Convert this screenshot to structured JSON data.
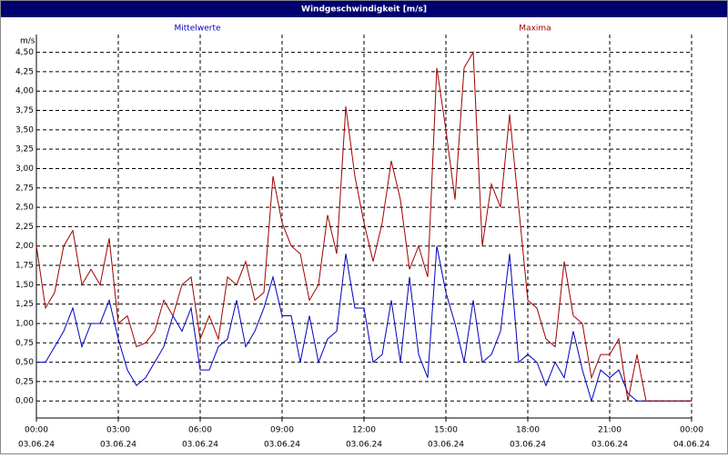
{
  "chart_data": {
    "type": "line",
    "title": "Windgeschwindigkeit [m/s]",
    "y_unit": "m/s",
    "x": [
      0,
      20,
      40,
      60,
      80,
      100,
      120,
      140,
      160,
      180,
      200,
      220,
      240,
      260,
      280,
      300,
      320,
      340,
      360,
      380,
      400,
      420,
      440,
      460,
      480,
      500,
      520,
      540,
      560,
      580,
      600,
      620,
      640,
      660,
      680,
      700,
      720,
      740,
      760,
      780,
      800,
      820,
      840,
      860,
      880,
      900,
      920,
      940,
      960,
      980,
      1000,
      1020,
      1040,
      1060,
      1080,
      1100,
      1120,
      1140,
      1160,
      1180,
      1200,
      1220,
      1240,
      1260,
      1280,
      1300,
      1320,
      1340,
      1360,
      1380,
      1400,
      1420,
      1440
    ],
    "series": [
      {
        "name": "Mittelwerte",
        "color": "#0000c0",
        "values": [
          0.5,
          0.5,
          0.7,
          0.9,
          1.2,
          0.7,
          1.0,
          1.0,
          1.3,
          0.8,
          0.4,
          0.2,
          0.3,
          0.5,
          0.7,
          1.1,
          0.9,
          1.2,
          0.4,
          0.4,
          0.7,
          0.8,
          1.3,
          0.7,
          0.9,
          1.2,
          1.6,
          1.1,
          1.1,
          0.5,
          1.1,
          0.5,
          0.8,
          0.9,
          1.9,
          1.2,
          1.2,
          0.5,
          0.6,
          1.3,
          0.5,
          1.6,
          0.6,
          0.3,
          2.0,
          1.4,
          1.0,
          0.5,
          1.3,
          0.5,
          0.6,
          0.9,
          1.9,
          0.5,
          0.6,
          0.5,
          0.2,
          0.5,
          0.3,
          0.9,
          0.4,
          0.0,
          0.4,
          0.3,
          0.4,
          0.1,
          0.0,
          0.0,
          0,
          0,
          0,
          0,
          0
        ]
      },
      {
        "name": "Maxima",
        "color": "#a00000",
        "values": [
          2.0,
          1.2,
          1.4,
          2.0,
          2.2,
          1.5,
          1.7,
          1.5,
          2.1,
          1.0,
          1.1,
          0.7,
          0.75,
          0.9,
          1.3,
          1.1,
          1.5,
          1.6,
          0.8,
          1.1,
          0.8,
          1.6,
          1.5,
          1.8,
          1.3,
          1.4,
          2.9,
          2.3,
          2.0,
          1.9,
          1.3,
          1.5,
          2.4,
          1.9,
          3.8,
          2.9,
          2.3,
          1.8,
          2.3,
          3.1,
          2.6,
          1.7,
          2.0,
          1.6,
          4.3,
          3.5,
          2.6,
          4.3,
          4.5,
          2.0,
          2.8,
          2.5,
          3.7,
          2.5,
          1.3,
          1.2,
          0.8,
          0.7,
          1.8,
          1.1,
          1.0,
          0.3,
          0.6,
          0.6,
          0.8,
          0.0,
          0.6,
          0.0,
          0,
          0,
          0,
          0,
          0
        ]
      }
    ],
    "xlim": [
      0,
      1440
    ],
    "xticks": [
      {
        "value": 0,
        "label": [
          "00:00",
          "03.06.24"
        ]
      },
      {
        "value": 180,
        "label": [
          "03:00",
          "03.06.24"
        ]
      },
      {
        "value": 360,
        "label": [
          "06:00",
          "03.06.24"
        ]
      },
      {
        "value": 540,
        "label": [
          "09:00",
          "03.06.24"
        ]
      },
      {
        "value": 720,
        "label": [
          "12:00",
          "03.06.24"
        ]
      },
      {
        "value": 900,
        "label": [
          "15:00",
          "03.06.24"
        ]
      },
      {
        "value": 1080,
        "label": [
          "18:00",
          "03.06.24"
        ]
      },
      {
        "value": 1260,
        "label": [
          "21:00",
          "03.06.24"
        ]
      },
      {
        "value": 1440,
        "label": [
          "00:00",
          "04.06.24"
        ]
      }
    ],
    "ylim": [
      -0.22,
      4.73
    ],
    "yticks": [
      {
        "value": 0,
        "label": "0,00"
      },
      {
        "value": 0.25,
        "label": "0,25"
      },
      {
        "value": 0.5,
        "label": "0,50"
      },
      {
        "value": 0.75,
        "label": "0,75"
      },
      {
        "value": 1,
        "label": "1,00"
      },
      {
        "value": 1.25,
        "label": "1,25"
      },
      {
        "value": 1.5,
        "label": "1,50"
      },
      {
        "value": 1.75,
        "label": "1,75"
      },
      {
        "value": 2,
        "label": "2,00"
      },
      {
        "value": 2.25,
        "label": "2,25"
      },
      {
        "value": 2.5,
        "label": "2,50"
      },
      {
        "value": 2.75,
        "label": "2,75"
      },
      {
        "value": 3,
        "label": "3,00"
      },
      {
        "value": 3.25,
        "label": "3,25"
      },
      {
        "value": 3.5,
        "label": "3,50"
      },
      {
        "value": 3.75,
        "label": "3,75"
      },
      {
        "value": 4,
        "label": "4,00"
      },
      {
        "value": 4.25,
        "label": "4,25"
      },
      {
        "value": 4.5,
        "label": "4,50"
      }
    ],
    "grid": true
  }
}
